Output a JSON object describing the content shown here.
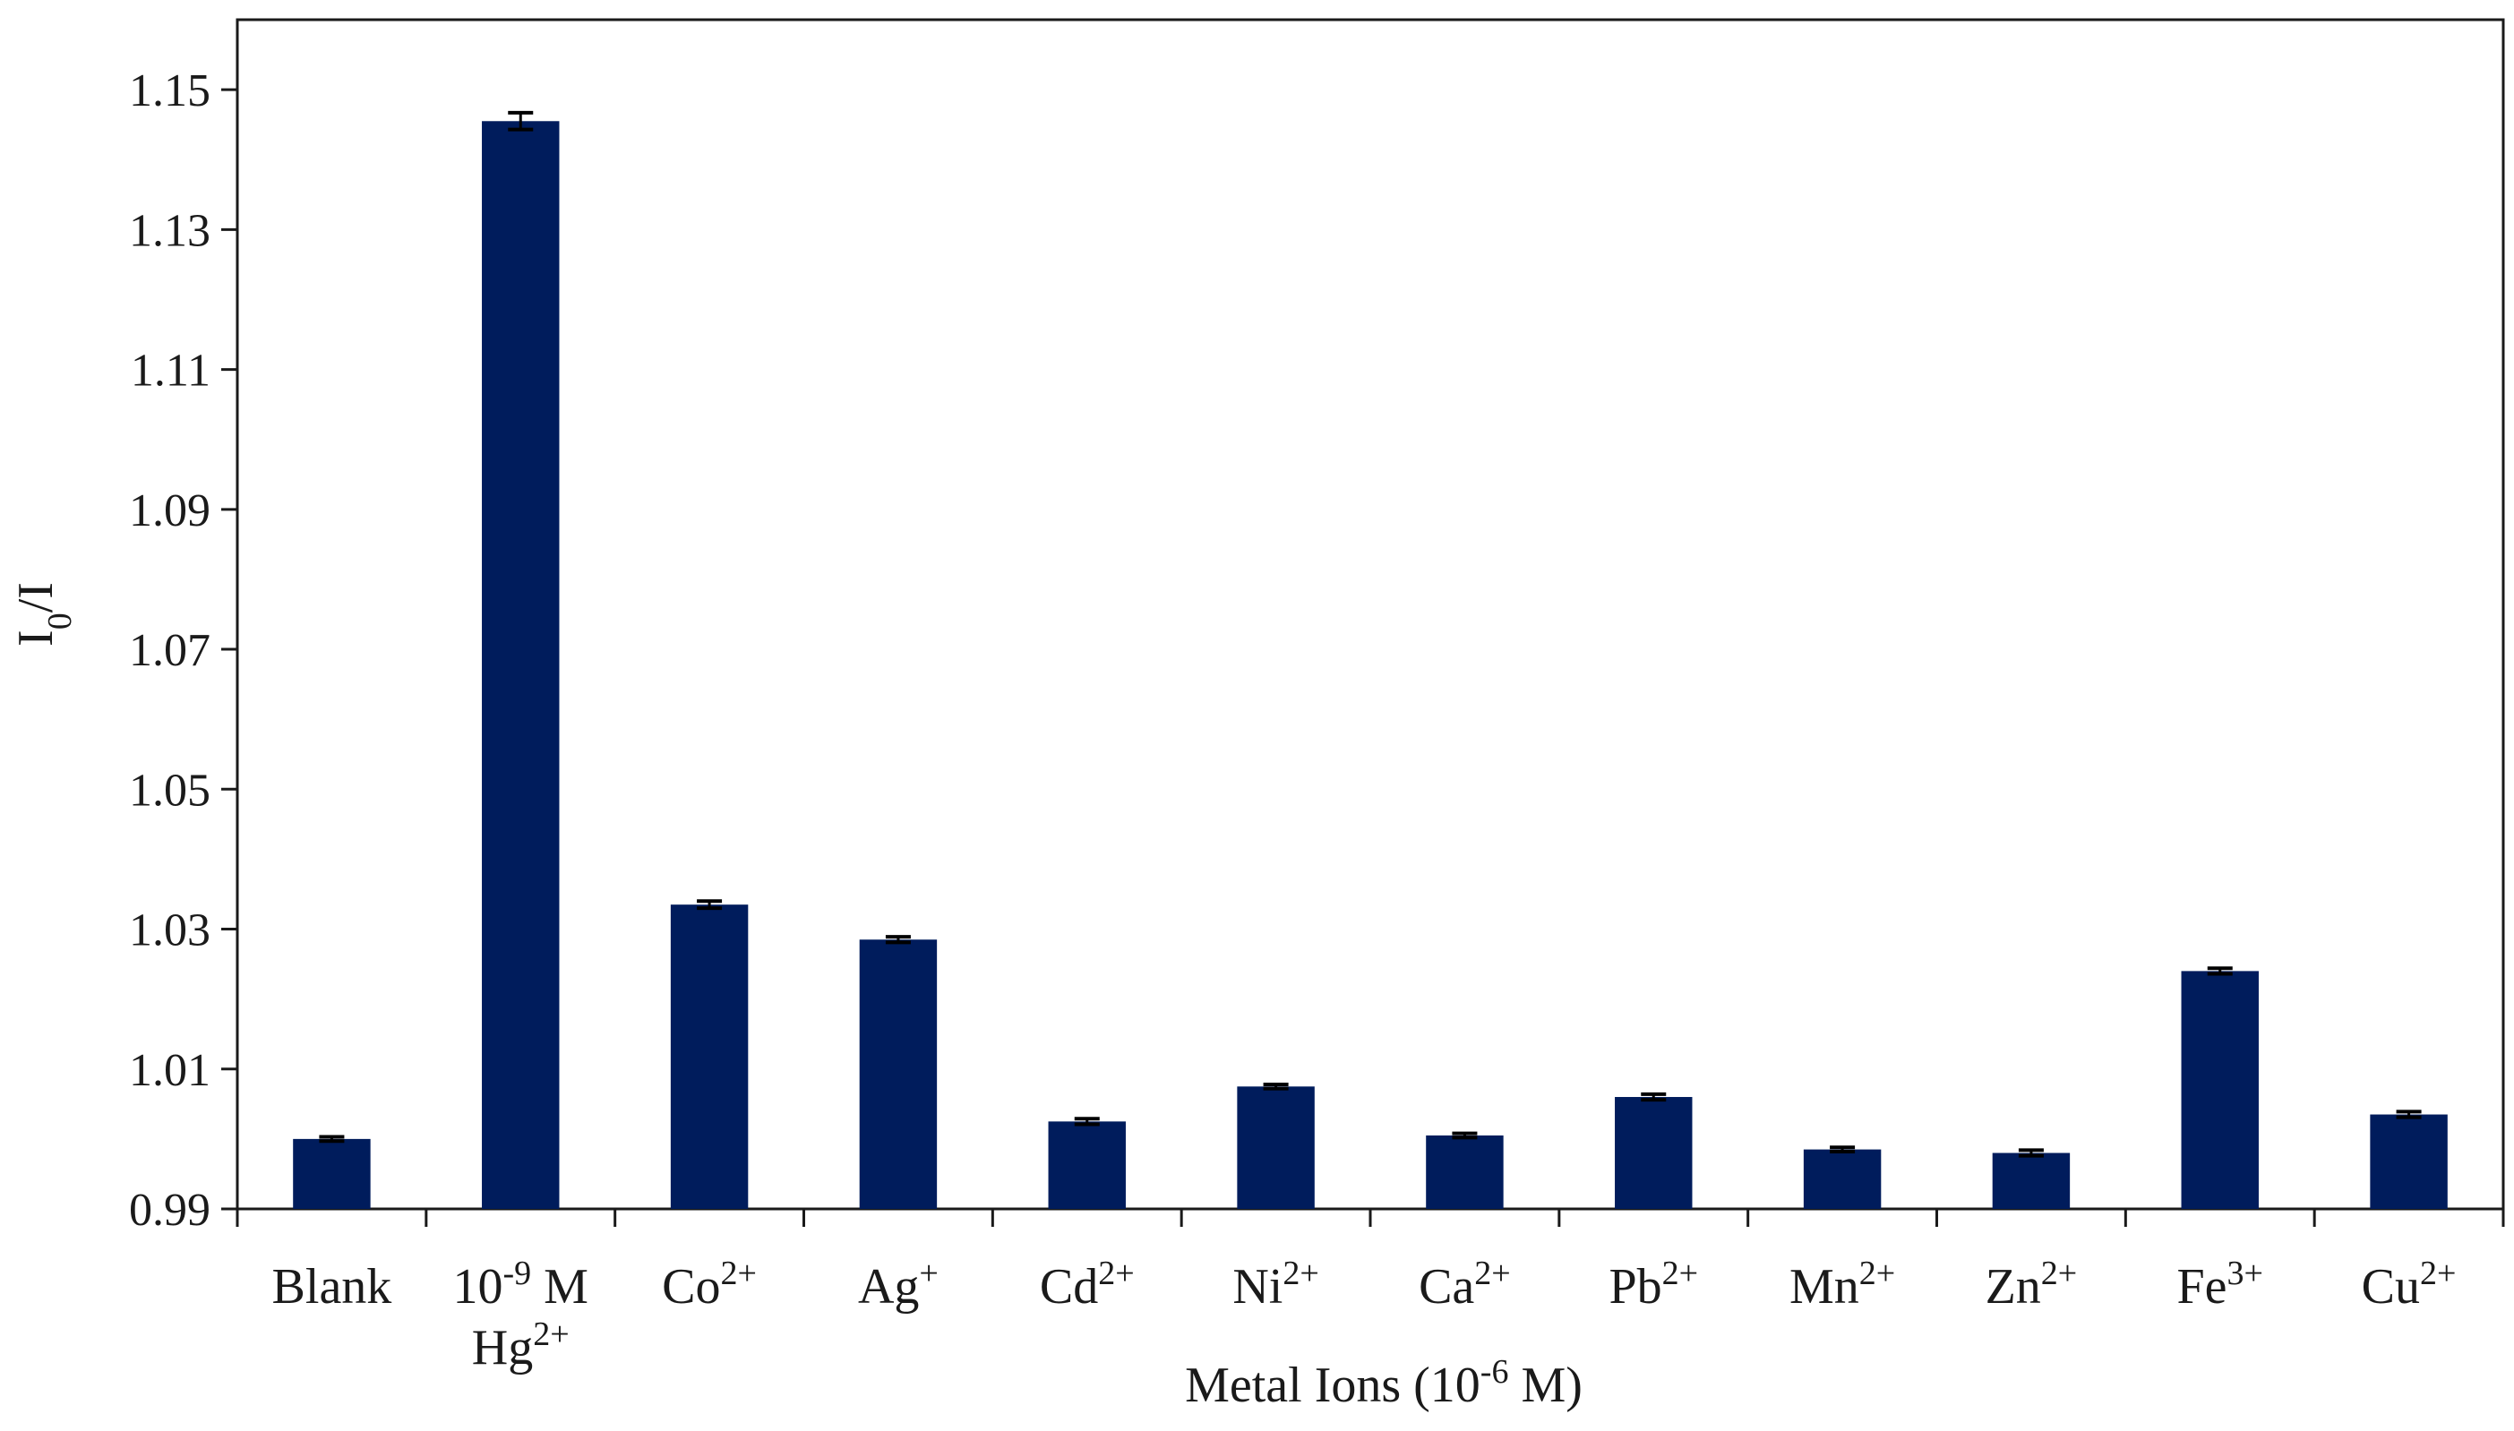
{
  "chart_data": {
    "type": "bar",
    "title": "",
    "xlabel": {
      "base": "Metal Ions (10",
      "sup": "-6",
      "tail": " M)"
    },
    "ylabel": {
      "base": "I",
      "sub": "0",
      "tail": "/I"
    },
    "ylim": [
      0.99,
      1.16
    ],
    "yticks": [
      "0.99",
      "1.01",
      "1.03",
      "1.05",
      "1.07",
      "1.09",
      "1.11",
      "1.13",
      "1.15"
    ],
    "grid": false,
    "bar_color": "#001c5c",
    "categories": [
      {
        "lines": [
          {
            "base": "Blank",
            "sup": ""
          }
        ]
      },
      {
        "lines": [
          {
            "base": "10",
            "sup": "-9",
            "tail": " M"
          },
          {
            "base": "Hg",
            "sup": "2+"
          }
        ]
      },
      {
        "lines": [
          {
            "base": "Co",
            "sup": "2+"
          }
        ]
      },
      {
        "lines": [
          {
            "base": "Ag",
            "sup": "+"
          }
        ]
      },
      {
        "lines": [
          {
            "base": "Cd",
            "sup": "2+"
          }
        ]
      },
      {
        "lines": [
          {
            "base": "Ni",
            "sup": "2+"
          }
        ]
      },
      {
        "lines": [
          {
            "base": "Ca",
            "sup": "2+"
          }
        ]
      },
      {
        "lines": [
          {
            "base": "Pb",
            "sup": "2+"
          }
        ]
      },
      {
        "lines": [
          {
            "base": "Mn",
            "sup": "2+"
          }
        ]
      },
      {
        "lines": [
          {
            "base": "Zn",
            "sup": "2+"
          }
        ]
      },
      {
        "lines": [
          {
            "base": "Fe",
            "sup": "3+"
          }
        ]
      },
      {
        "lines": [
          {
            "base": "Cu",
            "sup": "2+"
          }
        ]
      }
    ],
    "values": [
      1.0,
      1.1455,
      1.0335,
      1.0285,
      1.0025,
      1.0075,
      1.0005,
      1.006,
      0.9985,
      0.998,
      1.024,
      1.0035
    ],
    "errors": [
      0.0003,
      0.0012,
      0.0005,
      0.0004,
      0.0004,
      0.0003,
      0.0003,
      0.0004,
      0.0003,
      0.0004,
      0.0004,
      0.0004
    ]
  }
}
